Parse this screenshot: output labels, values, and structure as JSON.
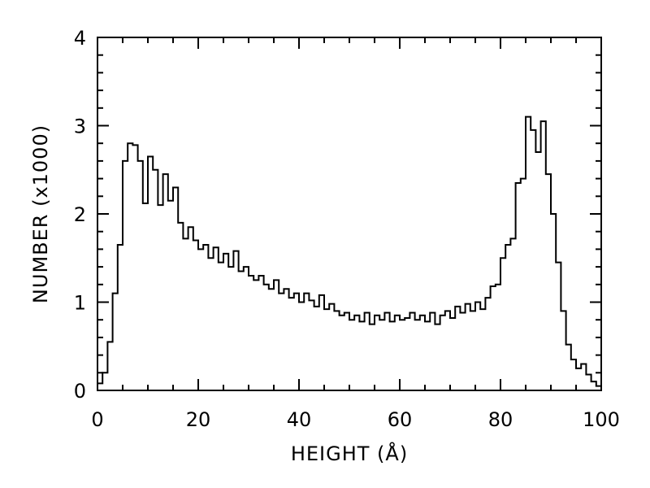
{
  "chart_data": {
    "type": "histogram",
    "xlabel": "HEIGHT (Å)",
    "ylabel": "NUMBER (x1000)",
    "xlim": [
      0,
      100
    ],
    "ylim": [
      0,
      4
    ],
    "x_ticks": [
      0,
      20,
      40,
      60,
      80,
      100
    ],
    "x_tick_labels": [
      "0",
      "20",
      "40",
      "60",
      "80",
      "100"
    ],
    "y_ticks": [
      0,
      1,
      2,
      3,
      4
    ],
    "y_tick_labels": [
      "0",
      "1",
      "2",
      "3",
      "4"
    ],
    "bin_width": 1,
    "bin_start": 0,
    "values": [
      0.08,
      0.2,
      0.55,
      1.1,
      1.65,
      2.6,
      2.8,
      2.78,
      2.6,
      2.12,
      2.65,
      2.5,
      2.1,
      2.45,
      2.15,
      2.3,
      1.9,
      1.72,
      1.85,
      1.7,
      1.6,
      1.65,
      1.5,
      1.62,
      1.45,
      1.55,
      1.4,
      1.58,
      1.35,
      1.4,
      1.3,
      1.25,
      1.3,
      1.2,
      1.15,
      1.25,
      1.1,
      1.15,
      1.05,
      1.1,
      1.0,
      1.1,
      1.02,
      0.95,
      1.08,
      0.92,
      0.98,
      0.9,
      0.85,
      0.88,
      0.8,
      0.85,
      0.78,
      0.88,
      0.75,
      0.85,
      0.8,
      0.88,
      0.78,
      0.85,
      0.8,
      0.82,
      0.88,
      0.8,
      0.85,
      0.78,
      0.88,
      0.75,
      0.85,
      0.9,
      0.82,
      0.95,
      0.88,
      0.98,
      0.9,
      1.0,
      0.92,
      1.05,
      1.18,
      1.2,
      1.5,
      1.65,
      1.72,
      2.35,
      2.4,
      3.1,
      2.95,
      2.7,
      3.05,
      2.45,
      2.0,
      1.45,
      0.9,
      0.52,
      0.35,
      0.25,
      0.3,
      0.18,
      0.1,
      0.05
    ],
    "grid": false,
    "legend": false
  }
}
